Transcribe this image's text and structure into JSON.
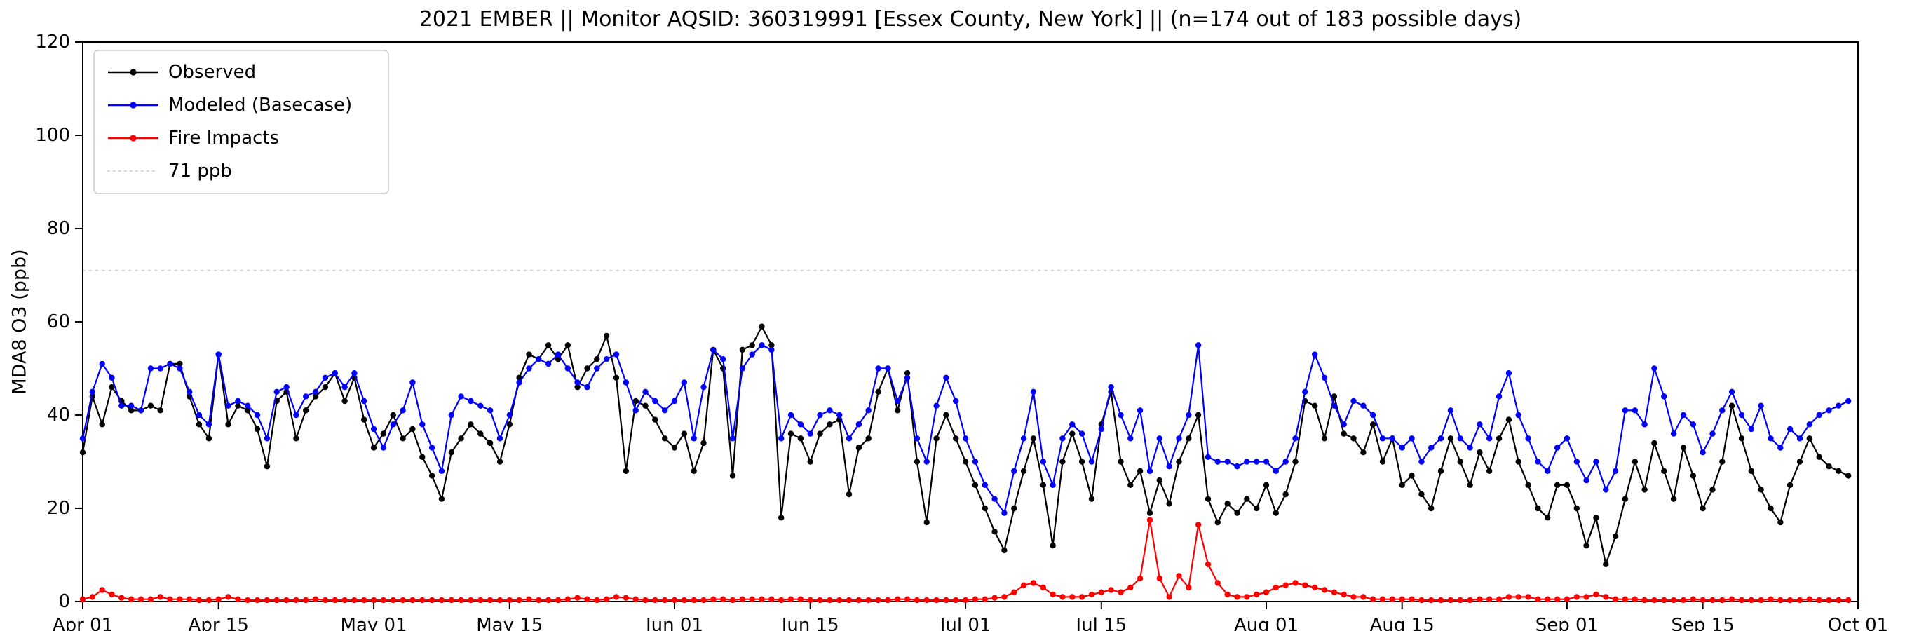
{
  "chart_data": {
    "type": "line",
    "title": "2021 EMBER || Monitor AQSID: 360319991 [Essex County, New York] || (n=174 out of 183 possible days)",
    "ylabel": "MDA8 O3 (ppb)",
    "ylim": [
      0,
      120
    ],
    "y_ticks": [
      0,
      20,
      40,
      60,
      80,
      100,
      120
    ],
    "x_start_date": "Apr 01",
    "x_end_date": "Oct 01",
    "x_total_days": 183,
    "cadence": "daily",
    "grid": false,
    "legend_position": "upper left",
    "x_tick_days": [
      0,
      14,
      30,
      44,
      61,
      75,
      91,
      105,
      122,
      136,
      153,
      167,
      183
    ],
    "x_tick_labels": [
      "Apr 01",
      "Apr 15",
      "May 01",
      "May 15",
      "Jun 01",
      "Jun 15",
      "Jul 01",
      "Jul 15",
      "Aug 01",
      "Aug 15",
      "Sep 01",
      "Sep 15",
      "Oct 01"
    ],
    "threshold": {
      "value": 71,
      "label": "71 ppb",
      "color": "#d9d9d9",
      "style": "dotted"
    },
    "legend": [
      {
        "label": "Observed",
        "color": "#000000",
        "dash": "",
        "marker": true
      },
      {
        "label": "Modeled (Basecase)",
        "color": "#0000ff",
        "dash": "",
        "marker": true
      },
      {
        "label": "Fire Impacts",
        "color": "#ff0000",
        "dash": "",
        "marker": true
      },
      {
        "label": "71 ppb",
        "color": "#d9d9d9",
        "dash": "2 6",
        "marker": false
      }
    ],
    "series": [
      {
        "name": "Observed",
        "color": "#000000",
        "values": [
          32,
          44,
          38,
          46,
          43,
          41,
          41,
          42,
          41,
          51,
          51,
          44,
          38,
          35,
          53,
          38,
          42,
          41,
          37,
          29,
          43,
          45,
          35,
          41,
          44,
          46,
          49,
          43,
          48,
          39,
          33,
          36,
          40,
          35,
          37,
          31,
          27,
          22,
          32,
          35,
          38,
          36,
          34,
          30,
          38,
          48,
          53,
          52,
          55,
          52,
          55,
          46,
          50,
          52,
          57,
          48,
          28,
          43,
          42,
          39,
          35,
          33,
          36,
          28,
          34,
          54,
          50,
          27,
          54,
          55,
          59,
          55,
          18,
          36,
          35,
          30,
          36,
          38,
          39,
          23,
          33,
          35,
          45,
          50,
          41,
          49,
          30,
          17,
          35,
          40,
          35,
          30,
          25,
          20,
          15,
          11,
          20,
          28,
          35,
          25,
          12,
          30,
          36,
          30,
          22,
          38,
          45,
          30,
          25,
          28,
          19,
          26,
          21,
          30,
          35,
          40,
          22,
          17,
          21,
          19,
          22,
          20,
          25,
          19,
          23,
          30,
          43,
          42,
          35,
          44,
          36,
          35,
          32,
          38,
          30,
          35,
          25,
          27,
          23,
          20,
          28,
          35,
          30,
          25,
          32,
          28,
          35,
          39,
          30,
          25,
          20,
          18,
          25,
          25,
          20,
          12,
          18,
          8,
          14,
          22,
          30,
          24,
          34,
          28,
          22,
          33,
          27,
          20,
          24,
          30,
          42,
          35,
          28,
          24,
          20,
          17,
          25,
          30,
          35,
          31,
          29,
          28,
          27
        ]
      },
      {
        "name": "Modeled (Basecase)",
        "color": "#0000ff",
        "values": [
          35,
          45,
          51,
          48,
          42,
          42,
          41,
          50,
          50,
          51,
          50,
          45,
          40,
          38,
          53,
          42,
          43,
          42,
          40,
          35,
          45,
          46,
          40,
          44,
          45,
          48,
          49,
          46,
          49,
          43,
          37,
          33,
          38,
          41,
          47,
          38,
          33,
          28,
          40,
          44,
          43,
          42,
          41,
          35,
          40,
          47,
          50,
          52,
          51,
          53,
          50,
          47,
          46,
          50,
          52,
          53,
          47,
          41,
          45,
          43,
          41,
          43,
          47,
          35,
          46,
          54,
          52,
          35,
          50,
          53,
          55,
          54,
          35,
          40,
          38,
          36,
          40,
          41,
          40,
          35,
          38,
          41,
          50,
          50,
          43,
          48,
          35,
          30,
          42,
          48,
          43,
          35,
          30,
          25,
          22,
          19,
          28,
          35,
          45,
          30,
          25,
          35,
          38,
          36,
          30,
          37,
          46,
          40,
          35,
          41,
          28,
          35,
          29,
          35,
          40,
          55,
          31,
          30,
          30,
          29,
          30,
          30,
          30,
          28,
          30,
          35,
          45,
          53,
          48,
          42,
          38,
          43,
          42,
          40,
          35,
          35,
          33,
          35,
          30,
          33,
          35,
          41,
          35,
          33,
          38,
          35,
          44,
          49,
          40,
          35,
          30,
          28,
          33,
          35,
          30,
          26,
          30,
          24,
          28,
          41,
          41,
          38,
          50,
          44,
          36,
          40,
          38,
          32,
          36,
          41,
          45,
          40,
          37,
          42,
          35,
          33,
          37,
          35,
          38,
          40,
          41,
          42,
          43
        ]
      },
      {
        "name": "Fire Impacts",
        "color": "#ff0000",
        "values": [
          0.5,
          1,
          2.5,
          1.5,
          0.8,
          0.5,
          0.5,
          0.5,
          1,
          0.5,
          0.5,
          0.5,
          0.3,
          0.3,
          0.5,
          1,
          0.5,
          0.3,
          0.3,
          0.3,
          0.3,
          0.3,
          0.3,
          0.3,
          0.5,
          0.3,
          0.3,
          0.3,
          0.3,
          0.3,
          0.3,
          0.3,
          0.3,
          0.3,
          0.3,
          0.3,
          0.3,
          0.3,
          0.3,
          0.3,
          0.3,
          0.3,
          0.3,
          0.3,
          0.3,
          0.3,
          0.5,
          0.3,
          0.3,
          0.3,
          0.5,
          0.8,
          0.5,
          0.3,
          0.5,
          1,
          0.8,
          0.5,
          0.3,
          0.3,
          0.3,
          0.3,
          0.3,
          0.3,
          0.3,
          0.5,
          0.5,
          0.3,
          0.5,
          0.5,
          0.5,
          0.5,
          0.3,
          0.5,
          0.5,
          0.3,
          0.3,
          0.3,
          0.3,
          0.3,
          0.3,
          0.3,
          0.3,
          0.3,
          0.5,
          0.5,
          0.3,
          0.3,
          0.3,
          0.3,
          0.3,
          0.3,
          0.5,
          0.5,
          0.8,
          1,
          2,
          3.5,
          4,
          3,
          1.5,
          1,
          1,
          1,
          1.5,
          2,
          2.5,
          2,
          3,
          5,
          17.5,
          5,
          1,
          5.5,
          3,
          16.5,
          8,
          4,
          1.5,
          1,
          1,
          1.5,
          2,
          3,
          3.5,
          4,
          3.5,
          3,
          2.5,
          2,
          1.5,
          1,
          1,
          0.5,
          0.5,
          0.5,
          0.5,
          0.5,
          0.3,
          0.3,
          0.3,
          0.3,
          0.3,
          0.3,
          0.5,
          0.5,
          0.5,
          1,
          1,
          1,
          0.5,
          0.5,
          0.5,
          0.5,
          1,
          1,
          1.5,
          1,
          0.5,
          0.5,
          0.5,
          0.3,
          0.3,
          0.3,
          0.3,
          0.3,
          0.5,
          0.3,
          0.3,
          0.3,
          0.5,
          0.3,
          0.3,
          0.3,
          0.5,
          0.3,
          0.3,
          0.3,
          0.5,
          0.3,
          0.3,
          0.3,
          0.3
        ]
      }
    ]
  }
}
